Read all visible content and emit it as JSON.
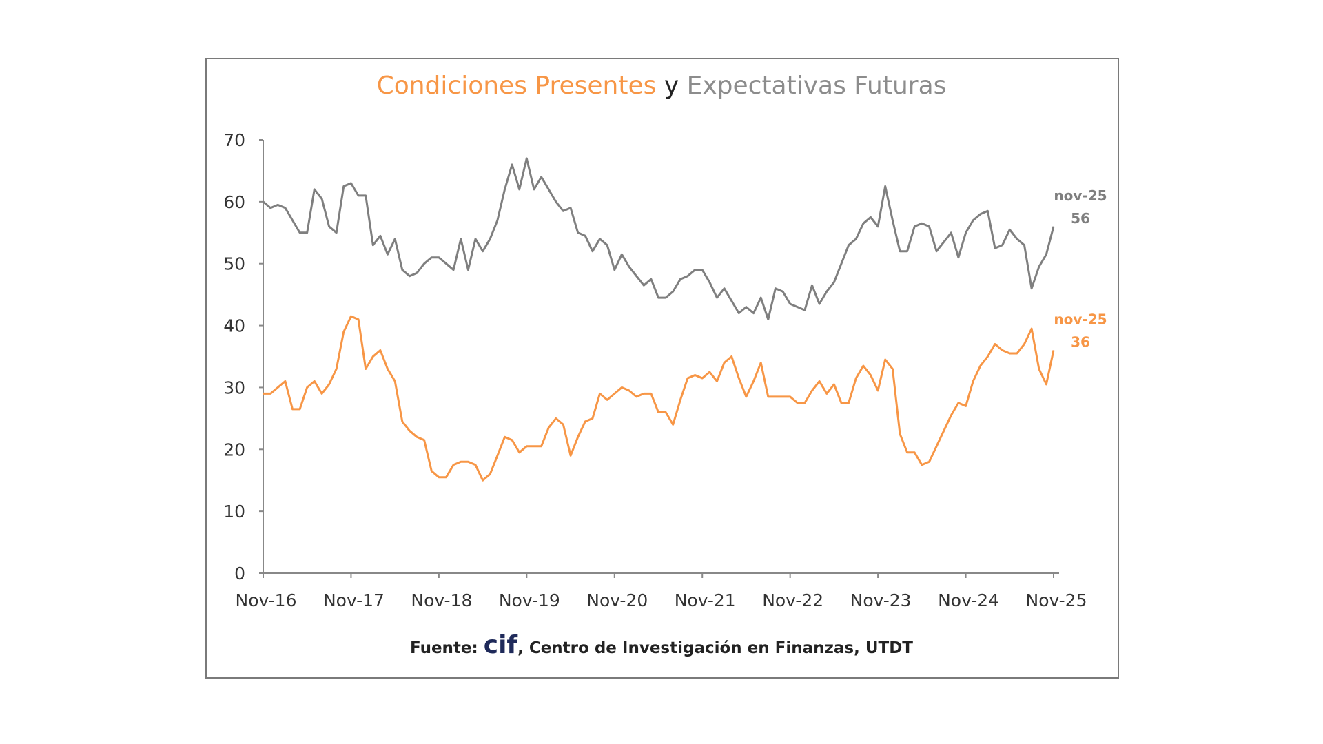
{
  "chart_data": {
    "type": "line",
    "title_parts": {
      "part1": "Condiciones Presentes",
      "part2": "y",
      "part3": "Expectativas Futuras"
    },
    "xlabel": "",
    "ylabel": "",
    "ylim": [
      0,
      70
    ],
    "yticks": [
      "0",
      "10",
      "20",
      "30",
      "40",
      "50",
      "60",
      "70"
    ],
    "xticks": [
      "Nov-16",
      "Nov-17",
      "Nov-18",
      "Nov-19",
      "Nov-20",
      "Nov-21",
      "Nov-22",
      "Nov-23",
      "Nov-24",
      "Nov-25"
    ],
    "x_start": "Nov-16",
    "x_end": "Nov-25",
    "frequency": "monthly",
    "grid": false,
    "legend": "none",
    "series": [
      {
        "name": "Expectativas Futuras",
        "color": "#7f7f7f",
        "values": [
          60,
          59,
          59.5,
          59,
          57,
          55,
          55,
          62,
          60.5,
          56,
          55,
          62.5,
          63,
          61,
          61,
          53,
          54.5,
          51.5,
          54,
          49,
          48,
          48.5,
          50,
          51,
          51,
          50,
          49,
          54,
          49,
          54,
          52,
          54,
          57,
          62,
          66,
          62,
          67,
          62,
          64,
          62,
          60,
          58.5,
          59,
          55,
          54.5,
          52,
          54,
          53,
          49,
          51.5,
          49.5,
          48,
          46.5,
          47.5,
          44.5,
          44.5,
          45.5,
          47.5,
          48,
          49,
          49,
          47,
          44.5,
          46,
          44,
          42,
          43,
          42,
          44.5,
          41,
          46,
          45.5,
          43.5,
          43,
          42.5,
          46.5,
          43.5,
          45.5,
          47,
          50,
          53,
          54,
          56.5,
          57.5,
          56,
          62.5,
          57,
          52,
          52,
          56,
          56.5,
          56,
          52,
          53.5,
          55,
          51,
          55,
          57,
          58,
          58.5,
          52.5,
          53,
          55.5,
          54,
          53,
          46,
          49.5,
          51.5,
          56
        ]
      },
      {
        "name": "Condiciones Presentes",
        "color": "#f79646",
        "values": [
          29,
          29,
          30,
          31,
          26.5,
          26.5,
          30,
          31,
          29,
          30.5,
          33,
          39,
          41.5,
          41,
          33,
          35,
          36,
          33,
          31,
          24.5,
          23,
          22,
          21.5,
          16.5,
          15.5,
          15.5,
          17.5,
          18,
          18,
          17.5,
          15,
          16,
          19,
          22,
          21.5,
          19.5,
          20.5,
          20.5,
          20.5,
          23.5,
          25,
          24,
          19,
          22,
          24.5,
          25,
          29,
          28,
          29,
          30,
          29.5,
          28.5,
          29,
          29,
          26,
          26,
          24,
          28,
          31.5,
          32,
          31.5,
          32.5,
          31,
          34,
          35,
          31.5,
          28.5,
          31,
          34,
          28.5,
          28.5,
          28.5,
          28.5,
          27.5,
          27.5,
          29.5,
          31,
          29,
          30.5,
          27.5,
          27.5,
          31.5,
          33.5,
          32,
          29.5,
          34.5,
          33,
          22.5,
          19.5,
          19.5,
          17.5,
          18,
          20.5,
          23,
          25.5,
          27.5,
          27,
          31,
          33.5,
          35,
          37,
          36,
          35.5,
          35.5,
          37,
          39.5,
          33,
          30.5,
          36
        ]
      }
    ],
    "annotations": [
      {
        "series": "Expectativas Futuras",
        "label": "nov-25",
        "value": "56"
      },
      {
        "series": "Condiciones Presentes",
        "label": "nov-25",
        "value": "36"
      }
    ],
    "source": {
      "prefix": "Fuente:",
      "logo": "cif",
      "text": ", Centro de Investigación en Finanzas, UTDT"
    }
  }
}
